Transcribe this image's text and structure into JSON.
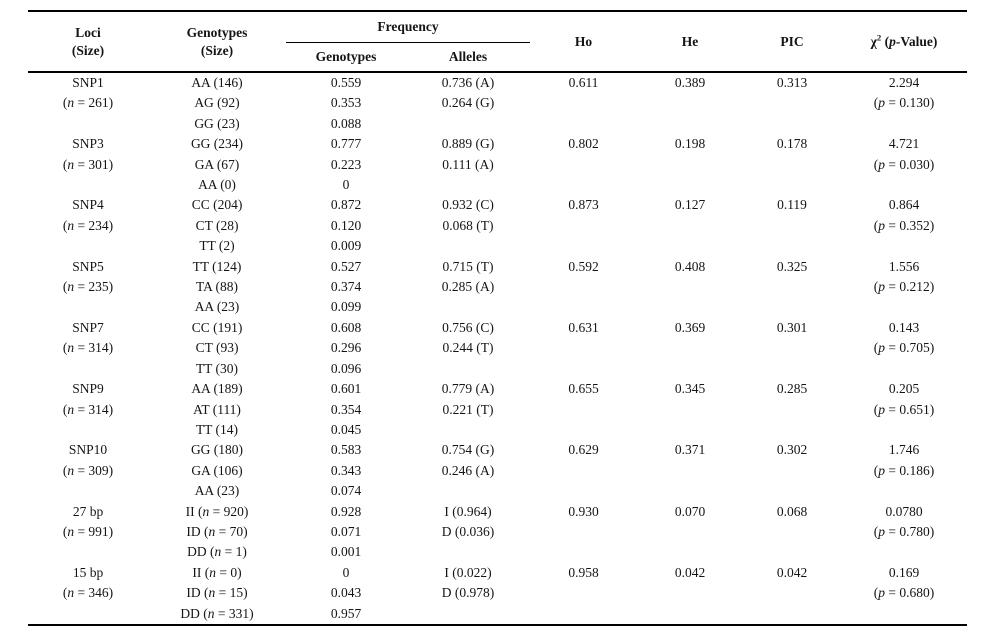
{
  "table": {
    "header": {
      "loci_line1": "Loci",
      "loci_line2": "(Size)",
      "genotypes_line1": "Genotypes",
      "genotypes_line2": "(Size)",
      "frequency": "Frequency",
      "freq_genotypes": "Genotypes",
      "freq_alleles": "Alleles",
      "ho": "Ho",
      "he": "He",
      "pic": "PIC",
      "chi2": "χ2 (p-Value)"
    },
    "groups": [
      {
        "locus": "SNP1",
        "size": "(n = 261)",
        "rows": [
          {
            "genotype": "AA (146)",
            "geno_freq": "0.559",
            "allele_freq": "0.736 (A)"
          },
          {
            "genotype": "AG (92)",
            "geno_freq": "0.353",
            "allele_freq": "0.264 (G)"
          },
          {
            "genotype": "GG (23)",
            "geno_freq": "0.088",
            "allele_freq": ""
          }
        ],
        "ho": "0.611",
        "he": "0.389",
        "pic": "0.313",
        "chi2": "2.294",
        "p_value": "(p = 0.130)"
      },
      {
        "locus": "SNP3",
        "size": "(n = 301)",
        "rows": [
          {
            "genotype": "GG (234)",
            "geno_freq": "0.777",
            "allele_freq": "0.889 (G)"
          },
          {
            "genotype": "GA (67)",
            "geno_freq": "0.223",
            "allele_freq": "0.111 (A)"
          },
          {
            "genotype": "AA (0)",
            "geno_freq": "0",
            "allele_freq": ""
          }
        ],
        "ho": "0.802",
        "he": "0.198",
        "pic": "0.178",
        "chi2": "4.721",
        "p_value": "(p = 0.030)"
      },
      {
        "locus": "SNP4",
        "size": "(n = 234)",
        "rows": [
          {
            "genotype": "CC (204)",
            "geno_freq": "0.872",
            "allele_freq": "0.932 (C)"
          },
          {
            "genotype": "CT (28)",
            "geno_freq": "0.120",
            "allele_freq": "0.068 (T)"
          },
          {
            "genotype": "TT (2)",
            "geno_freq": "0.009",
            "allele_freq": ""
          }
        ],
        "ho": "0.873",
        "he": "0.127",
        "pic": "0.119",
        "chi2": "0.864",
        "p_value": "(p = 0.352)"
      },
      {
        "locus": "SNP5",
        "size": "(n = 235)",
        "rows": [
          {
            "genotype": "TT (124)",
            "geno_freq": "0.527",
            "allele_freq": "0.715 (T)"
          },
          {
            "genotype": "TA (88)",
            "geno_freq": "0.374",
            "allele_freq": "0.285 (A)"
          },
          {
            "genotype": "AA (23)",
            "geno_freq": "0.099",
            "allele_freq": ""
          }
        ],
        "ho": "0.592",
        "he": "0.408",
        "pic": "0.325",
        "chi2": "1.556",
        "p_value": "(p = 0.212)"
      },
      {
        "locus": "SNP7",
        "size": "(n = 314)",
        "rows": [
          {
            "genotype": "CC (191)",
            "geno_freq": "0.608",
            "allele_freq": "0.756 (C)"
          },
          {
            "genotype": "CT (93)",
            "geno_freq": "0.296",
            "allele_freq": "0.244 (T)"
          },
          {
            "genotype": "TT (30)",
            "geno_freq": "0.096",
            "allele_freq": ""
          }
        ],
        "ho": "0.631",
        "he": "0.369",
        "pic": "0.301",
        "chi2": "0.143",
        "p_value": "(p = 0.705)"
      },
      {
        "locus": "SNP9",
        "size": "(n = 314)",
        "rows": [
          {
            "genotype": "AA (189)",
            "geno_freq": "0.601",
            "allele_freq": "0.779 (A)"
          },
          {
            "genotype": "AT (111)",
            "geno_freq": "0.354",
            "allele_freq": "0.221 (T)"
          },
          {
            "genotype": "TT (14)",
            "geno_freq": "0.045",
            "allele_freq": ""
          }
        ],
        "ho": "0.655",
        "he": "0.345",
        "pic": "0.285",
        "chi2": "0.205",
        "p_value": "(p = 0.651)"
      },
      {
        "locus": "SNP10",
        "size": "(n = 309)",
        "rows": [
          {
            "genotype": "GG (180)",
            "geno_freq": "0.583",
            "allele_freq": "0.754 (G)"
          },
          {
            "genotype": "GA (106)",
            "geno_freq": "0.343",
            "allele_freq": "0.246 (A)"
          },
          {
            "genotype": "AA (23)",
            "geno_freq": "0.074",
            "allele_freq": ""
          }
        ],
        "ho": "0.629",
        "he": "0.371",
        "pic": "0.302",
        "chi2": "1.746",
        "p_value": "(p = 0.186)"
      },
      {
        "locus": "27 bp",
        "size": "(n = 991)",
        "rows": [
          {
            "genotype": "II (n = 920)",
            "geno_freq": "0.928",
            "allele_freq": "I (0.964)"
          },
          {
            "genotype": "ID (n = 70)",
            "geno_freq": "0.071",
            "allele_freq": "D (0.036)"
          },
          {
            "genotype": "DD (n = 1)",
            "geno_freq": "0.001",
            "allele_freq": ""
          }
        ],
        "ho": "0.930",
        "he": "0.070",
        "pic": "0.068",
        "chi2": "0.0780",
        "p_value": "(p = 0.780)"
      },
      {
        "locus": "15 bp",
        "size": "(n = 346)",
        "rows": [
          {
            "genotype": "II (n = 0)",
            "geno_freq": "0",
            "allele_freq": "I (0.022)"
          },
          {
            "genotype": "ID (n = 15)",
            "geno_freq": "0.043",
            "allele_freq": "D (0.978)"
          },
          {
            "genotype": "DD (n = 331)",
            "geno_freq": "0.957",
            "allele_freq": ""
          }
        ],
        "ho": "0.958",
        "he": "0.042",
        "pic": "0.042",
        "chi2": "0.169",
        "p_value": "(p = 0.680)"
      }
    ]
  }
}
